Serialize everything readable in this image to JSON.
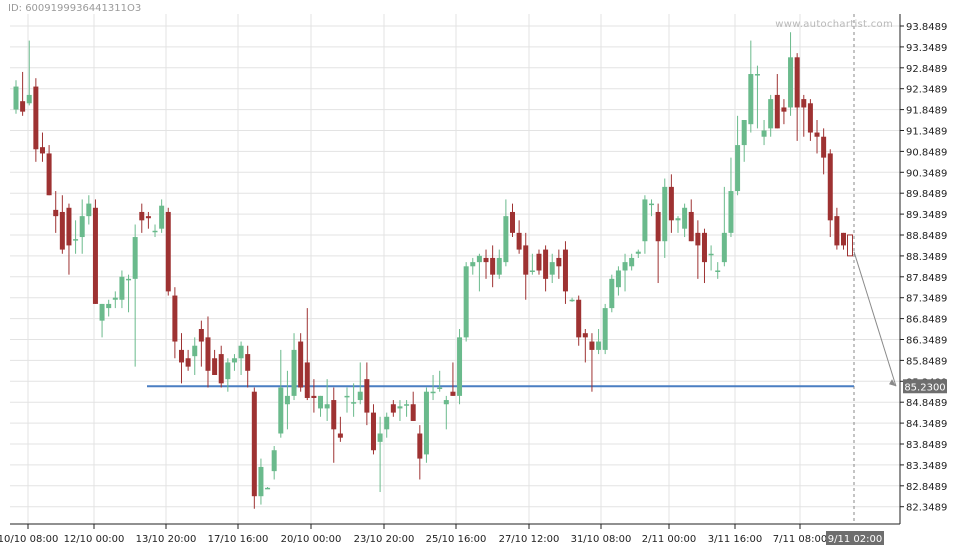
{
  "header": {
    "id_text": "ID: 6009199936441311O3",
    "watermark": "www.autochartist.com"
  },
  "colors": {
    "up": "#6aba8c",
    "down": "#9e3232",
    "grid": "#e3e3e3",
    "axis": "#222222",
    "support": "#4a7ec2",
    "projection": "#8a8a8a",
    "label_bg": "#6e6e6e"
  },
  "chart_data": {
    "type": "candlestick",
    "y_ticks": [
      "93.8489",
      "93.3489",
      "92.8489",
      "92.3489",
      "91.8489",
      "91.3489",
      "90.8489",
      "90.3489",
      "89.8489",
      "89.3489",
      "88.8489",
      "88.3489",
      "87.8489",
      "87.3489",
      "86.8489",
      "86.3489",
      "85.8489",
      "85.3489",
      "84.8489",
      "84.3489",
      "83.8489",
      "83.3489",
      "82.8489",
      "82.3489"
    ],
    "ylim": [
      82.0,
      94.1
    ],
    "x_ticks": [
      "10/10 08:00",
      "12/10 00:00",
      "13/10 20:00",
      "17/10 16:00",
      "20/10 00:00",
      "23/10 20:00",
      "25/10 16:00",
      "27/10 12:00",
      "31/10 08:00",
      "2/11 00:00",
      "3/11 16:00",
      "7/11 08:00"
    ],
    "current_time_label": "9/11 02:00",
    "support_level": 85.23,
    "support_label": "85.2300",
    "candles": [
      {
        "o": 91.85,
        "h": 92.55,
        "l": 91.75,
        "c": 92.4
      },
      {
        "o": 92.05,
        "h": 92.75,
        "l": 91.7,
        "c": 91.8
      },
      {
        "o": 92.0,
        "h": 93.5,
        "l": 91.95,
        "c": 92.2
      },
      {
        "o": 92.4,
        "h": 92.6,
        "l": 90.6,
        "c": 90.9
      },
      {
        "o": 90.95,
        "h": 91.3,
        "l": 90.6,
        "c": 90.8
      },
      {
        "o": 90.8,
        "h": 91.0,
        "l": 89.8,
        "c": 89.8
      },
      {
        "o": 89.45,
        "h": 89.9,
        "l": 88.9,
        "c": 89.3
      },
      {
        "o": 89.4,
        "h": 89.8,
        "l": 88.4,
        "c": 88.5
      },
      {
        "o": 89.5,
        "h": 89.6,
        "l": 87.9,
        "c": 88.6
      },
      {
        "o": 88.75,
        "h": 89.2,
        "l": 88.4,
        "c": 88.75
      },
      {
        "o": 88.8,
        "h": 89.7,
        "l": 88.4,
        "c": 89.3
      },
      {
        "o": 89.3,
        "h": 89.8,
        "l": 89.1,
        "c": 89.6
      },
      {
        "o": 89.5,
        "h": 89.7,
        "l": 87.2,
        "c": 87.2
      },
      {
        "o": 86.8,
        "h": 87.2,
        "l": 86.4,
        "c": 87.2
      },
      {
        "o": 87.1,
        "h": 87.3,
        "l": 86.9,
        "c": 87.2
      },
      {
        "o": 87.3,
        "h": 87.5,
        "l": 87.1,
        "c": 87.35
      },
      {
        "o": 87.3,
        "h": 88.0,
        "l": 87.1,
        "c": 87.85
      },
      {
        "o": 87.8,
        "h": 87.9,
        "l": 87.0,
        "c": 87.8
      },
      {
        "o": 87.8,
        "h": 89.1,
        "l": 85.7,
        "c": 88.8
      },
      {
        "o": 89.4,
        "h": 89.6,
        "l": 88.9,
        "c": 89.2
      },
      {
        "o": 89.3,
        "h": 89.4,
        "l": 89.0,
        "c": 89.25
      },
      {
        "o": 88.95,
        "h": 89.1,
        "l": 88.8,
        "c": 88.95
      },
      {
        "o": 89.0,
        "h": 89.7,
        "l": 88.9,
        "c": 89.55
      },
      {
        "o": 89.4,
        "h": 89.5,
        "l": 87.4,
        "c": 87.5
      },
      {
        "o": 87.4,
        "h": 87.6,
        "l": 85.9,
        "c": 86.3
      },
      {
        "o": 86.1,
        "h": 86.5,
        "l": 85.3,
        "c": 85.8
      },
      {
        "o": 85.9,
        "h": 86.1,
        "l": 85.6,
        "c": 85.7
      },
      {
        "o": 85.95,
        "h": 86.4,
        "l": 85.5,
        "c": 86.2
      },
      {
        "o": 86.6,
        "h": 86.8,
        "l": 85.7,
        "c": 86.3
      },
      {
        "o": 86.4,
        "h": 86.9,
        "l": 85.2,
        "c": 85.6
      },
      {
        "o": 85.9,
        "h": 86.1,
        "l": 85.5,
        "c": 85.5
      },
      {
        "o": 86.0,
        "h": 86.2,
        "l": 85.2,
        "c": 85.3
      },
      {
        "o": 85.4,
        "h": 85.9,
        "l": 85.1,
        "c": 85.8
      },
      {
        "o": 85.8,
        "h": 86.0,
        "l": 85.6,
        "c": 85.9
      },
      {
        "o": 85.9,
        "h": 86.3,
        "l": 85.5,
        "c": 86.2
      },
      {
        "o": 86.0,
        "h": 86.2,
        "l": 85.2,
        "c": 85.6
      },
      {
        "o": 85.1,
        "h": 85.2,
        "l": 82.3,
        "c": 82.6
      },
      {
        "o": 82.6,
        "h": 83.5,
        "l": 82.4,
        "c": 83.3
      },
      {
        "o": 82.8,
        "h": 82.82,
        "l": 82.78,
        "c": 82.8
      },
      {
        "o": 83.2,
        "h": 83.8,
        "l": 83.0,
        "c": 83.7
      },
      {
        "o": 84.1,
        "h": 86.1,
        "l": 84.0,
        "c": 85.2
      },
      {
        "o": 84.8,
        "h": 85.6,
        "l": 84.2,
        "c": 85.0
      },
      {
        "o": 85.0,
        "h": 86.5,
        "l": 84.9,
        "c": 86.1
      },
      {
        "o": 86.3,
        "h": 86.5,
        "l": 85.1,
        "c": 85.2
      },
      {
        "o": 85.8,
        "h": 87.1,
        "l": 84.9,
        "c": 84.95
      },
      {
        "o": 85.0,
        "h": 85.4,
        "l": 84.6,
        "c": 84.95
      },
      {
        "o": 84.7,
        "h": 85.0,
        "l": 84.5,
        "c": 85.0
      },
      {
        "o": 84.7,
        "h": 85.4,
        "l": 84.4,
        "c": 84.8
      },
      {
        "o": 84.9,
        "h": 85.2,
        "l": 83.4,
        "c": 84.2
      },
      {
        "o": 84.1,
        "h": 84.5,
        "l": 83.9,
        "c": 84.0
      },
      {
        "o": 85.0,
        "h": 85.2,
        "l": 84.6,
        "c": 85.0
      },
      {
        "o": 84.85,
        "h": 85.3,
        "l": 84.5,
        "c": 84.85
      },
      {
        "o": 84.9,
        "h": 85.8,
        "l": 84.8,
        "c": 85.1
      },
      {
        "o": 85.4,
        "h": 85.8,
        "l": 84.3,
        "c": 84.6
      },
      {
        "o": 84.6,
        "h": 84.8,
        "l": 83.6,
        "c": 83.7
      },
      {
        "o": 83.9,
        "h": 84.5,
        "l": 82.7,
        "c": 84.1
      },
      {
        "o": 84.2,
        "h": 84.6,
        "l": 84.0,
        "c": 84.5
      },
      {
        "o": 84.8,
        "h": 84.9,
        "l": 84.5,
        "c": 84.6
      },
      {
        "o": 84.7,
        "h": 84.9,
        "l": 84.4,
        "c": 84.75
      },
      {
        "o": 84.8,
        "h": 84.9,
        "l": 84.5,
        "c": 84.8
      },
      {
        "o": 84.8,
        "h": 85.1,
        "l": 84.4,
        "c": 84.4
      },
      {
        "o": 84.1,
        "h": 84.3,
        "l": 83.0,
        "c": 83.5
      },
      {
        "o": 83.6,
        "h": 85.2,
        "l": 83.4,
        "c": 85.1
      },
      {
        "o": 85.1,
        "h": 85.5,
        "l": 84.9,
        "c": 85.1
      },
      {
        "o": 85.2,
        "h": 85.6,
        "l": 85.1,
        "c": 85.2
      },
      {
        "o": 84.8,
        "h": 85.0,
        "l": 84.2,
        "c": 84.9
      },
      {
        "o": 85.1,
        "h": 85.8,
        "l": 85.0,
        "c": 85.0
      },
      {
        "o": 85.0,
        "h": 86.6,
        "l": 84.8,
        "c": 86.4
      },
      {
        "o": 86.4,
        "h": 88.2,
        "l": 86.3,
        "c": 88.1
      },
      {
        "o": 88.1,
        "h": 88.3,
        "l": 87.9,
        "c": 88.2
      },
      {
        "o": 88.2,
        "h": 88.4,
        "l": 87.5,
        "c": 88.35
      },
      {
        "o": 88.3,
        "h": 88.5,
        "l": 87.8,
        "c": 88.2
      },
      {
        "o": 88.3,
        "h": 88.6,
        "l": 87.6,
        "c": 87.9
      },
      {
        "o": 87.9,
        "h": 88.5,
        "l": 87.8,
        "c": 88.3
      },
      {
        "o": 88.2,
        "h": 89.7,
        "l": 88.1,
        "c": 89.3
      },
      {
        "o": 89.4,
        "h": 89.6,
        "l": 88.8,
        "c": 88.9
      },
      {
        "o": 88.9,
        "h": 89.2,
        "l": 88.4,
        "c": 88.5
      },
      {
        "o": 88.6,
        "h": 88.9,
        "l": 87.3,
        "c": 87.9
      },
      {
        "o": 88.0,
        "h": 88.4,
        "l": 87.9,
        "c": 88.0
      },
      {
        "o": 88.4,
        "h": 88.5,
        "l": 87.9,
        "c": 88.0
      },
      {
        "o": 88.5,
        "h": 88.6,
        "l": 87.5,
        "c": 87.8
      },
      {
        "o": 87.9,
        "h": 88.4,
        "l": 87.7,
        "c": 88.2
      },
      {
        "o": 88.3,
        "h": 88.5,
        "l": 87.8,
        "c": 88.1
      },
      {
        "o": 88.5,
        "h": 88.7,
        "l": 87.2,
        "c": 87.5
      },
      {
        "o": 87.3,
        "h": 87.35,
        "l": 87.25,
        "c": 87.3
      },
      {
        "o": 87.3,
        "h": 87.4,
        "l": 86.2,
        "c": 86.4
      },
      {
        "o": 86.5,
        "h": 86.6,
        "l": 85.8,
        "c": 86.4
      },
      {
        "o": 86.3,
        "h": 86.5,
        "l": 85.1,
        "c": 86.1
      },
      {
        "o": 86.1,
        "h": 86.6,
        "l": 86.0,
        "c": 86.3
      },
      {
        "o": 86.1,
        "h": 87.2,
        "l": 86.0,
        "c": 87.1
      },
      {
        "o": 87.1,
        "h": 87.9,
        "l": 87.0,
        "c": 87.8
      },
      {
        "o": 87.6,
        "h": 88.1,
        "l": 87.4,
        "c": 88.0
      },
      {
        "o": 88.0,
        "h": 88.4,
        "l": 87.5,
        "c": 88.2
      },
      {
        "o": 88.1,
        "h": 88.4,
        "l": 88.0,
        "c": 88.3
      },
      {
        "o": 88.4,
        "h": 88.5,
        "l": 88.3,
        "c": 88.45
      },
      {
        "o": 88.7,
        "h": 89.8,
        "l": 88.4,
        "c": 89.7
      },
      {
        "o": 89.6,
        "h": 89.7,
        "l": 89.3,
        "c": 89.6
      },
      {
        "o": 89.4,
        "h": 89.6,
        "l": 87.7,
        "c": 88.7
      },
      {
        "o": 88.7,
        "h": 90.2,
        "l": 88.3,
        "c": 90.0
      },
      {
        "o": 90.0,
        "h": 90.3,
        "l": 88.9,
        "c": 89.2
      },
      {
        "o": 89.2,
        "h": 89.3,
        "l": 88.9,
        "c": 89.25
      },
      {
        "o": 89.0,
        "h": 89.6,
        "l": 88.8,
        "c": 89.5
      },
      {
        "o": 89.4,
        "h": 89.7,
        "l": 88.7,
        "c": 88.7
      },
      {
        "o": 88.9,
        "h": 89.2,
        "l": 87.8,
        "c": 88.6
      },
      {
        "o": 88.9,
        "h": 89.0,
        "l": 87.7,
        "c": 88.2
      },
      {
        "o": 88.4,
        "h": 88.6,
        "l": 88.0,
        "c": 88.4
      },
      {
        "o": 88.0,
        "h": 88.2,
        "l": 87.8,
        "c": 88.0
      },
      {
        "o": 88.2,
        "h": 90.0,
        "l": 88.1,
        "c": 88.9
      },
      {
        "o": 88.9,
        "h": 90.7,
        "l": 88.8,
        "c": 89.9
      },
      {
        "o": 89.9,
        "h": 91.7,
        "l": 89.8,
        "c": 91.0
      },
      {
        "o": 91.0,
        "h": 91.6,
        "l": 90.6,
        "c": 91.6
      },
      {
        "o": 91.5,
        "h": 93.5,
        "l": 91.3,
        "c": 92.7
      },
      {
        "o": 92.7,
        "h": 92.9,
        "l": 91.4,
        "c": 92.7
      },
      {
        "o": 91.2,
        "h": 91.6,
        "l": 91.0,
        "c": 91.35
      },
      {
        "o": 91.4,
        "h": 92.2,
        "l": 91.2,
        "c": 92.1
      },
      {
        "o": 92.2,
        "h": 92.7,
        "l": 91.4,
        "c": 91.4
      },
      {
        "o": 91.9,
        "h": 92.1,
        "l": 91.5,
        "c": 91.8
      },
      {
        "o": 91.9,
        "h": 93.7,
        "l": 91.7,
        "c": 93.1
      },
      {
        "o": 93.1,
        "h": 93.2,
        "l": 91.1,
        "c": 91.9
      },
      {
        "o": 92.1,
        "h": 92.2,
        "l": 91.2,
        "c": 91.9
      },
      {
        "o": 92.0,
        "h": 92.1,
        "l": 91.1,
        "c": 91.3
      },
      {
        "o": 91.3,
        "h": 91.6,
        "l": 90.8,
        "c": 91.2
      },
      {
        "o": 91.2,
        "h": 91.4,
        "l": 90.3,
        "c": 90.7
      },
      {
        "o": 90.8,
        "h": 90.9,
        "l": 88.8,
        "c": 89.2
      },
      {
        "o": 89.3,
        "h": 89.5,
        "l": 88.5,
        "c": 88.6
      },
      {
        "o": 88.9,
        "h": 88.9,
        "l": 88.5,
        "c": 88.6
      }
    ]
  }
}
